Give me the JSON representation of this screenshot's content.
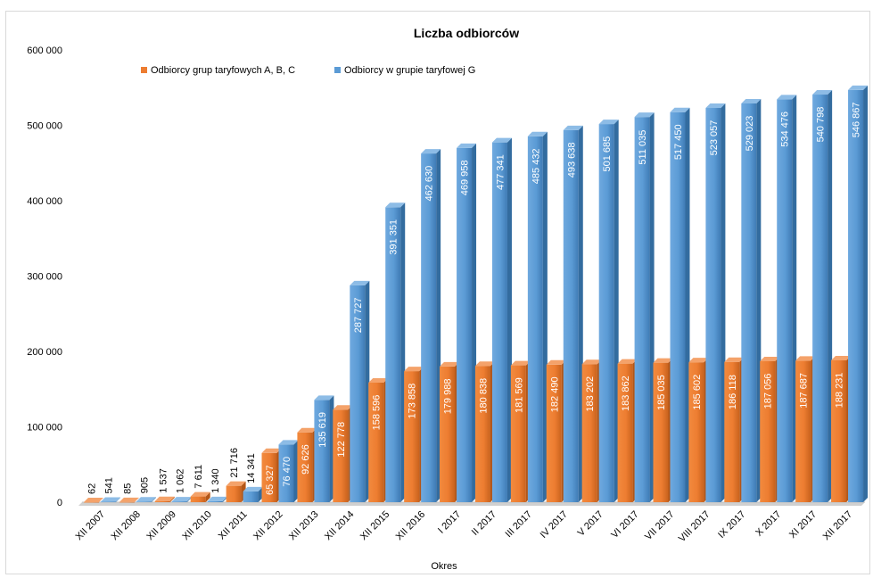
{
  "chart_data": {
    "type": "bar",
    "title": "Liczba odbiorców",
    "xlabel": "Okres",
    "ylabel": "",
    "ylim": [
      0,
      600000
    ],
    "yticks": [
      0,
      100000,
      200000,
      300000,
      400000,
      500000,
      600000
    ],
    "ytick_labels": [
      "0",
      "100 000",
      "200 000",
      "300 000",
      "400 000",
      "500 000",
      "600 000"
    ],
    "grid": false,
    "legend_position": "top-left",
    "categories": [
      "XII 2007",
      "XII 2008",
      "XII 2009",
      "XII 2010",
      "XII 2011",
      "XII 2012",
      "XII 2013",
      "XII 2014",
      "XII 2015",
      "XII 2016",
      "I 2017",
      "II 2017",
      "III 2017",
      "IV 2017",
      "V 2017",
      "VI 2017",
      "VII 2017",
      "VIII 2017",
      "IX 2017",
      "X 2017",
      "XI 2017",
      "XII 2017"
    ],
    "series": [
      {
        "name": "Odbiorcy grup taryfowych A, B, C",
        "color": "#ED7D31",
        "values": [
          62,
          85,
          1537,
          7611,
          21716,
          65327,
          92626,
          122778,
          158596,
          173858,
          179988,
          180838,
          181569,
          182490,
          183202,
          183862,
          185035,
          185602,
          186118,
          187056,
          187687,
          188231
        ],
        "labels": [
          "62",
          "85",
          "1 537",
          "7 611",
          "21 716",
          "65 327",
          "92 626",
          "122 778",
          "158 596",
          "173 858",
          "179 988",
          "180 838",
          "181 569",
          "182 490",
          "183 202",
          "183 862",
          "185 035",
          "185 602",
          "186 118",
          "187 056",
          "187 687",
          "188 231"
        ]
      },
      {
        "name": "Odbiorcy w grupie taryfowej G",
        "color": "#5B9BD5",
        "values": [
          541,
          905,
          1062,
          1340,
          14341,
          76470,
          135619,
          287727,
          391351,
          462630,
          469958,
          477341,
          485432,
          493638,
          501685,
          511035,
          517450,
          523057,
          529023,
          534476,
          540798,
          546867
        ],
        "labels": [
          "541",
          "905",
          "1 062",
          "1 340",
          "14 341",
          "76 470",
          "135 619",
          "287 727",
          "391 351",
          "462 630",
          "469 958",
          "477 341",
          "485 432",
          "493 638",
          "501 685",
          "511 035",
          "517 450",
          "523 057",
          "529 023",
          "534 476",
          "540 798",
          "546 867"
        ]
      }
    ]
  }
}
